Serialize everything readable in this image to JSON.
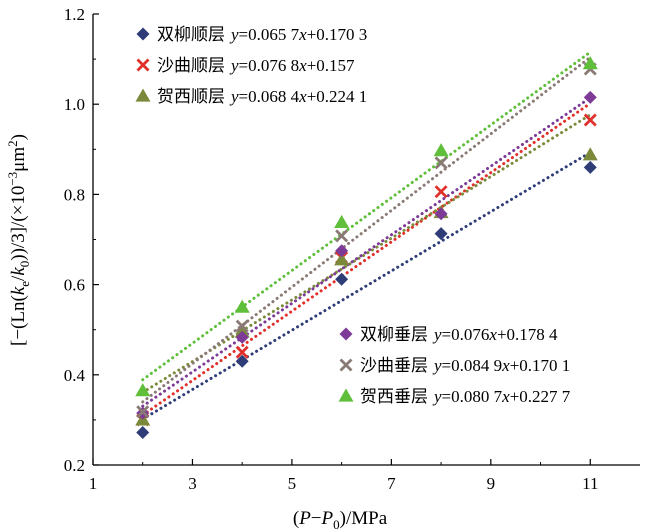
{
  "chart_data": {
    "type": "scatter",
    "xlabel": "(P−P0)/MPa",
    "ylabel": "[−(Ln(ke/k0))/3]/(×10⁻³μm²)",
    "xlim": [
      1,
      12
    ],
    "ylim": [
      0.2,
      1.2
    ],
    "x_ticks": [
      "1",
      "3",
      "5",
      "7",
      "9",
      "11"
    ],
    "y_ticks": [
      "0.2",
      "0.4",
      "0.6",
      "0.8",
      "1.0",
      "1.2"
    ],
    "grid": false,
    "legend_groups": [
      {
        "placement": "top-left",
        "series_indices": [
          0,
          1,
          2
        ]
      },
      {
        "placement": "middle-right",
        "series_indices": [
          3,
          4,
          5
        ]
      }
    ],
    "series": [
      {
        "name": "双柳顺层",
        "marker": "diamond",
        "color": "#2e3c78",
        "equation": "y=0.065 7x+0.170 3",
        "slope": 0.0657,
        "intercept": 0.1703,
        "x": [
          2,
          4,
          6,
          8,
          11
        ],
        "y": [
          0.272,
          0.43,
          0.612,
          0.713,
          0.86
        ]
      },
      {
        "name": "沙曲顺层",
        "marker": "x",
        "color": "#e0302b",
        "equation": "y=0.076 8x+0.157",
        "slope": 0.0768,
        "intercept": 0.157,
        "x": [
          2,
          4,
          6,
          8,
          11
        ],
        "y": [
          0.3,
          0.45,
          0.66,
          0.806,
          0.965
        ]
      },
      {
        "name": "贺西顺层",
        "marker": "triangle",
        "color": "#7b8a3a",
        "equation": "y=0.068 4x+0.224 1",
        "slope": 0.0684,
        "intercept": 0.2241,
        "x": [
          2,
          4,
          6,
          8,
          11
        ],
        "y": [
          0.3,
          0.495,
          0.655,
          0.76,
          0.888
        ]
      },
      {
        "name": "双柳垂层",
        "marker": "diamond",
        "color": "#7d3a96",
        "equation": "y=0.076x+0.178 4",
        "slope": 0.076,
        "intercept": 0.1784,
        "x": [
          2,
          4,
          6,
          8,
          11
        ],
        "y": [
          0.315,
          0.483,
          0.675,
          0.757,
          1.015
        ]
      },
      {
        "name": "沙曲垂层",
        "marker": "x",
        "color": "#8a7a75",
        "equation": "y=0.084 9x+0.170 1",
        "slope": 0.0849,
        "intercept": 0.1701,
        "x": [
          2,
          4,
          6,
          8,
          11
        ],
        "y": [
          0.318,
          0.508,
          0.708,
          0.87,
          1.078
        ]
      },
      {
        "name": "贺西垂层",
        "marker": "triangle",
        "color": "#5fbf3a",
        "equation": "y=0.080 7x+0.227 7",
        "slope": 0.0807,
        "intercept": 0.2277,
        "x": [
          2,
          4,
          6,
          8,
          11
        ],
        "y": [
          0.365,
          0.55,
          0.738,
          0.897,
          1.09
        ]
      }
    ]
  }
}
